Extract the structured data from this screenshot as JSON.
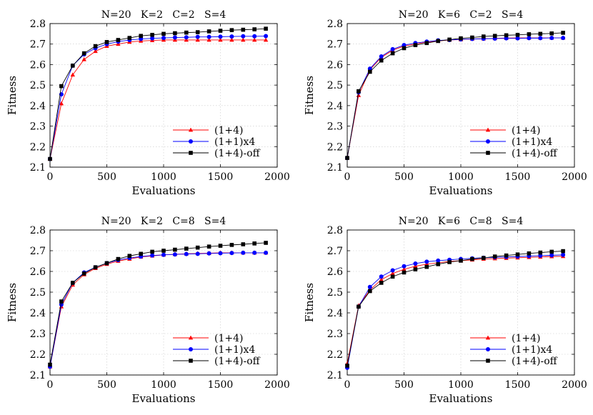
{
  "figure": {
    "legend_position": "bottom-right",
    "colors": {
      "s14": "#ff0000",
      "s11x4": "#0000ff",
      "s14off": "#000000"
    },
    "series_names": [
      "(1+4)",
      "(1+1)x4",
      "(1+4)-off"
    ],
    "markers": [
      "triangle",
      "circle",
      "square"
    ]
  },
  "chart_data": [
    {
      "type": "line",
      "title": "N=20   K=2   C=2   S=4",
      "xlabel": "Evaluations",
      "ylabel": "Fitness",
      "xlim": [
        0,
        2000
      ],
      "ylim": [
        2.1,
        2.8
      ],
      "xticks": [
        0,
        500,
        1000,
        1500,
        2000
      ],
      "yticks": [
        2.1,
        2.2,
        2.3,
        2.4,
        2.5,
        2.6,
        2.7,
        2.8
      ],
      "grid": true,
      "legend": "bottom-right",
      "x": [
        0,
        100,
        200,
        300,
        400,
        500,
        600,
        700,
        800,
        900,
        1000,
        1100,
        1200,
        1300,
        1400,
        1500,
        1600,
        1700,
        1800,
        1900
      ],
      "series": [
        {
          "name": "(1+4)",
          "values": [
            2.14,
            2.41,
            2.55,
            2.625,
            2.665,
            2.69,
            2.7,
            2.71,
            2.715,
            2.718,
            2.72,
            2.72,
            2.72,
            2.72,
            2.72,
            2.72,
            2.72,
            2.72,
            2.72,
            2.72
          ]
        },
        {
          "name": "(1+1)x4",
          "values": [
            2.14,
            2.455,
            2.595,
            2.65,
            2.68,
            2.7,
            2.712,
            2.72,
            2.725,
            2.728,
            2.73,
            2.732,
            2.733,
            2.735,
            2.735,
            2.736,
            2.737,
            2.738,
            2.738,
            2.739
          ]
        },
        {
          "name": "(1+4)-off",
          "values": [
            2.14,
            2.495,
            2.595,
            2.655,
            2.69,
            2.71,
            2.72,
            2.73,
            2.74,
            2.745,
            2.75,
            2.753,
            2.756,
            2.758,
            2.762,
            2.765,
            2.768,
            2.77,
            2.772,
            2.775
          ]
        }
      ]
    },
    {
      "type": "line",
      "title": "N=20   K=6   C=2   S=4",
      "xlabel": "Evaluations",
      "ylabel": "Fitness",
      "xlim": [
        0,
        2000
      ],
      "ylim": [
        2.1,
        2.8
      ],
      "xticks": [
        0,
        500,
        1000,
        1500,
        2000
      ],
      "yticks": [
        2.1,
        2.2,
        2.3,
        2.4,
        2.5,
        2.6,
        2.7,
        2.8
      ],
      "grid": true,
      "legend": "bottom-right",
      "x": [
        0,
        100,
        200,
        300,
        400,
        500,
        600,
        700,
        800,
        900,
        1000,
        1100,
        1200,
        1300,
        1400,
        1500,
        1600,
        1700,
        1800,
        1900
      ],
      "series": [
        {
          "name": "(1+4)",
          "values": [
            2.145,
            2.45,
            2.575,
            2.635,
            2.67,
            2.69,
            2.7,
            2.71,
            2.715,
            2.72,
            2.722,
            2.725,
            2.726,
            2.728,
            2.729,
            2.73,
            2.73,
            2.73,
            2.73,
            2.73
          ]
        },
        {
          "name": "(1+1)x4",
          "values": [
            2.145,
            2.465,
            2.58,
            2.64,
            2.675,
            2.695,
            2.705,
            2.712,
            2.718,
            2.72,
            2.723,
            2.725,
            2.726,
            2.727,
            2.728,
            2.728,
            2.729,
            2.729,
            2.73,
            2.73
          ]
        },
        {
          "name": "(1+4)-off",
          "values": [
            2.145,
            2.47,
            2.565,
            2.62,
            2.655,
            2.68,
            2.695,
            2.705,
            2.715,
            2.722,
            2.728,
            2.732,
            2.737,
            2.74,
            2.743,
            2.745,
            2.748,
            2.75,
            2.752,
            2.755
          ]
        }
      ]
    },
    {
      "type": "line",
      "title": "N=20   K=2   C=8   S=4",
      "xlabel": "Evaluations",
      "ylabel": "Fitness",
      "xlim": [
        0,
        2000
      ],
      "ylim": [
        2.1,
        2.8
      ],
      "xticks": [
        0,
        500,
        1000,
        1500,
        2000
      ],
      "yticks": [
        2.1,
        2.2,
        2.3,
        2.4,
        2.5,
        2.6,
        2.7,
        2.8
      ],
      "grid": true,
      "legend": "bottom-right",
      "x": [
        0,
        100,
        200,
        300,
        400,
        500,
        600,
        700,
        800,
        900,
        1000,
        1100,
        1200,
        1300,
        1400,
        1500,
        1600,
        1700,
        1800,
        1900
      ],
      "series": [
        {
          "name": "(1+4)",
          "values": [
            2.14,
            2.43,
            2.535,
            2.585,
            2.615,
            2.635,
            2.65,
            2.66,
            2.67,
            2.675,
            2.68,
            2.683,
            2.685,
            2.687,
            2.688,
            2.69,
            2.69,
            2.69,
            2.69,
            2.69
          ]
        },
        {
          "name": "(1+1)x4",
          "values": [
            2.14,
            2.44,
            2.545,
            2.595,
            2.62,
            2.64,
            2.655,
            2.665,
            2.672,
            2.677,
            2.68,
            2.682,
            2.684,
            2.685,
            2.687,
            2.688,
            2.689,
            2.69,
            2.69,
            2.69
          ]
        },
        {
          "name": "(1+4)-off",
          "values": [
            2.15,
            2.455,
            2.545,
            2.59,
            2.62,
            2.64,
            2.66,
            2.675,
            2.685,
            2.695,
            2.7,
            2.705,
            2.71,
            2.715,
            2.72,
            2.724,
            2.728,
            2.731,
            2.735,
            2.738
          ]
        }
      ]
    },
    {
      "type": "line",
      "title": "N=20   K=6   C=8   S=4",
      "xlabel": "Evaluations",
      "ylabel": "Fitness",
      "xlim": [
        0,
        2000
      ],
      "ylim": [
        2.1,
        2.8
      ],
      "xticks": [
        0,
        500,
        1000,
        1500,
        2000
      ],
      "yticks": [
        2.1,
        2.2,
        2.3,
        2.4,
        2.5,
        2.6,
        2.7,
        2.8
      ],
      "grid": true,
      "legend": "bottom-right",
      "x": [
        0,
        100,
        200,
        300,
        400,
        500,
        600,
        700,
        800,
        900,
        1000,
        1100,
        1200,
        1300,
        1400,
        1500,
        1600,
        1700,
        1800,
        1900
      ],
      "series": [
        {
          "name": "(1+4)",
          "values": [
            2.155,
            2.435,
            2.51,
            2.56,
            2.59,
            2.61,
            2.625,
            2.635,
            2.642,
            2.648,
            2.652,
            2.656,
            2.66,
            2.662,
            2.664,
            2.666,
            2.668,
            2.67,
            2.672,
            2.673
          ]
        },
        {
          "name": "(1+1)x4",
          "values": [
            2.135,
            2.43,
            2.525,
            2.575,
            2.605,
            2.625,
            2.638,
            2.647,
            2.652,
            2.656,
            2.66,
            2.663,
            2.666,
            2.668,
            2.67,
            2.672,
            2.674,
            2.676,
            2.678,
            2.68
          ]
        },
        {
          "name": "(1+4)-off",
          "values": [
            2.145,
            2.43,
            2.505,
            2.545,
            2.575,
            2.595,
            2.61,
            2.622,
            2.635,
            2.645,
            2.652,
            2.66,
            2.665,
            2.672,
            2.677,
            2.682,
            2.687,
            2.691,
            2.695,
            2.698
          ]
        }
      ]
    }
  ]
}
